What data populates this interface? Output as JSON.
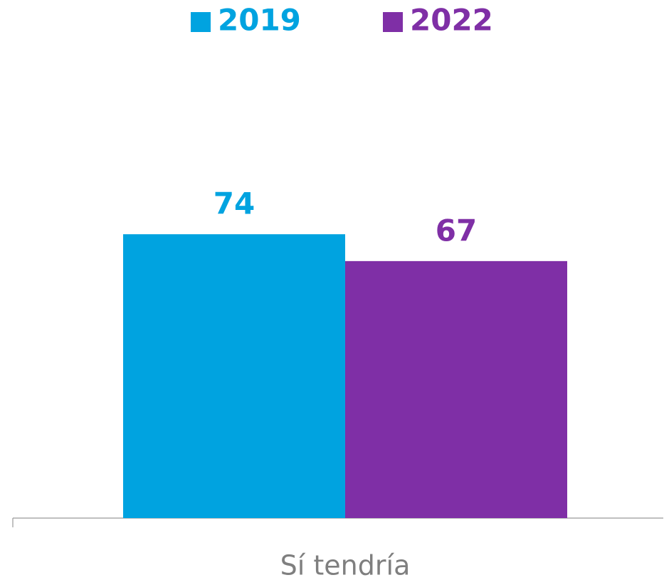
{
  "chart_data": {
    "type": "bar",
    "categories": [
      "Sí tendría"
    ],
    "series": [
      {
        "name": "2019",
        "color": "#00a3e0",
        "values": [
          74
        ]
      },
      {
        "name": "2022",
        "color": "#7f2fa6",
        "values": [
          67
        ]
      }
    ],
    "ylim": [
      0,
      100
    ],
    "legend": "top"
  }
}
